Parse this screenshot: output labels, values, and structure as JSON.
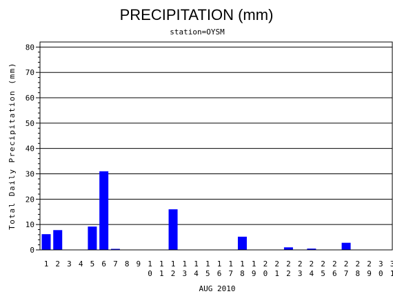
{
  "chart_data": {
    "type": "bar",
    "title": "PRECIPITATION (mm)",
    "subtitle": "station=OYSM",
    "xlabel": "AUG 2010",
    "ylabel": "Total Daily Precipitation (mm)",
    "ylim": [
      0,
      82
    ],
    "yticks": [
      0,
      10,
      20,
      30,
      40,
      50,
      60,
      70,
      80
    ],
    "grid": true,
    "bar_color": "#0000ff",
    "categories": [
      "1",
      "2",
      "3",
      "4",
      "5",
      "6",
      "7",
      "8",
      "9",
      "10",
      "11",
      "12",
      "13",
      "14",
      "15",
      "16",
      "17",
      "18",
      "19",
      "20",
      "21",
      "22",
      "23",
      "24",
      "25",
      "26",
      "27",
      "28",
      "29",
      "30",
      "31"
    ],
    "values": [
      6.2,
      7.8,
      0,
      0,
      9.2,
      31,
      0.4,
      0,
      0,
      0,
      0,
      16,
      0,
      0,
      0,
      0,
      0,
      5.2,
      0,
      0,
      0,
      1,
      0,
      0.5,
      0,
      0,
      2.8,
      0,
      0,
      0,
      0
    ]
  }
}
